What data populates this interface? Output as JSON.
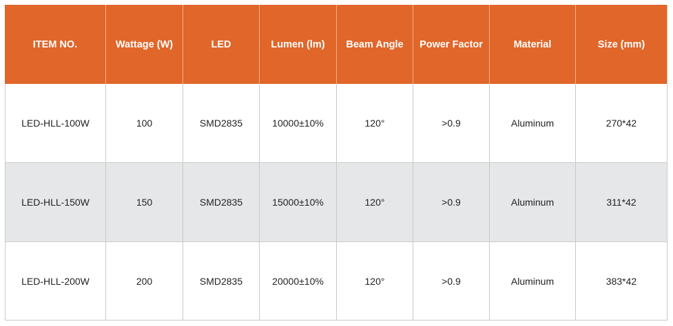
{
  "table": {
    "header": [
      "ITEM NO.",
      "Wattage (W)",
      "LED",
      "Lumen (lm)",
      "Beam Angle",
      "Power Factor",
      "Material",
      "Size (mm)"
    ],
    "rows": [
      [
        "LED-HLL-100W",
        "100",
        "SMD2835",
        "10000±10%",
        "120°",
        ">0.9",
        "Aluminum",
        "270*42"
      ],
      [
        "LED-HLL-150W",
        "150",
        "SMD2835",
        "15000±10%",
        "120°",
        ">0.9",
        "Aluminum",
        "311*42"
      ],
      [
        "LED-HLL-200W",
        "200",
        "SMD2835",
        "20000±10%",
        "120°",
        ">0.9",
        "Aluminum",
        "383*42"
      ]
    ]
  }
}
